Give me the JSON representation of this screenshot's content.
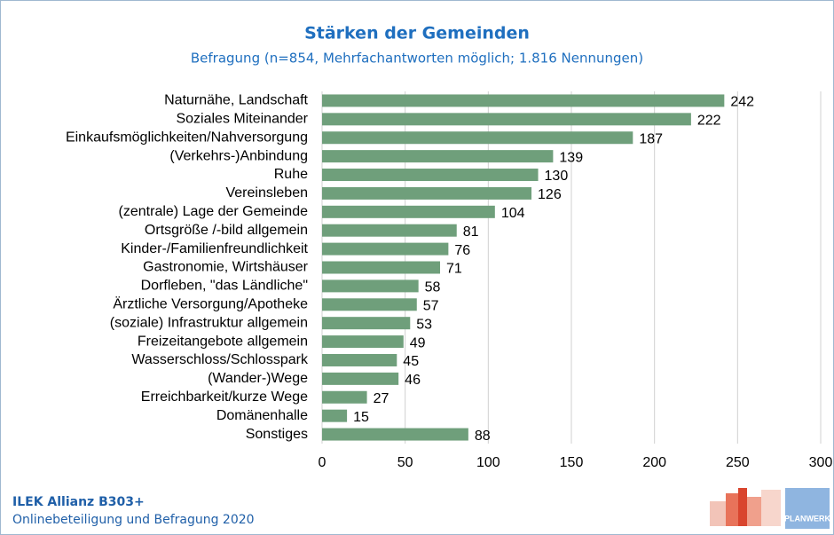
{
  "chart_data": {
    "type": "barh",
    "title": "Stärken der Gemeinden",
    "subtitle": "Befragung (n=854, Mehrfachantworten möglich; 1.816 Nennungen)",
    "categories": [
      "Naturnähe, Landschaft",
      "Soziales Miteinander",
      "Einkaufsmöglichkeiten/Nahversorgung",
      "(Verkehrs-)Anbindung",
      "Ruhe",
      "Vereinsleben",
      "(zentrale) Lage der Gemeinde",
      "Ortsgröße /-bild allgemein",
      "Kinder-/Familienfreundlichkeit",
      "Gastronomie, Wirtshäuser",
      "Dorfleben, \"das Ländliche\"",
      "Ärztliche Versorgung/Apotheke",
      "(soziale) Infrastruktur allgemein",
      "Freizeitangebote allgemein",
      "Wasserschloss/Schlosspark",
      "(Wander-)Wege",
      "Erreichbarkeit/kurze Wege",
      "Domänenhalle",
      "Sonstiges"
    ],
    "values": [
      242,
      222,
      187,
      139,
      130,
      126,
      104,
      81,
      76,
      71,
      58,
      57,
      53,
      49,
      45,
      46,
      27,
      15,
      88
    ],
    "color": "#6f9f7b",
    "xlim": [
      0,
      300
    ],
    "xticks": [
      0,
      50,
      100,
      150,
      200,
      250,
      300
    ],
    "grid": true,
    "footer": [
      "ILEK Allianz B303+",
      "Onlinebeteiligung und Befragung 2020"
    ],
    "logo": "PLANWERK"
  }
}
